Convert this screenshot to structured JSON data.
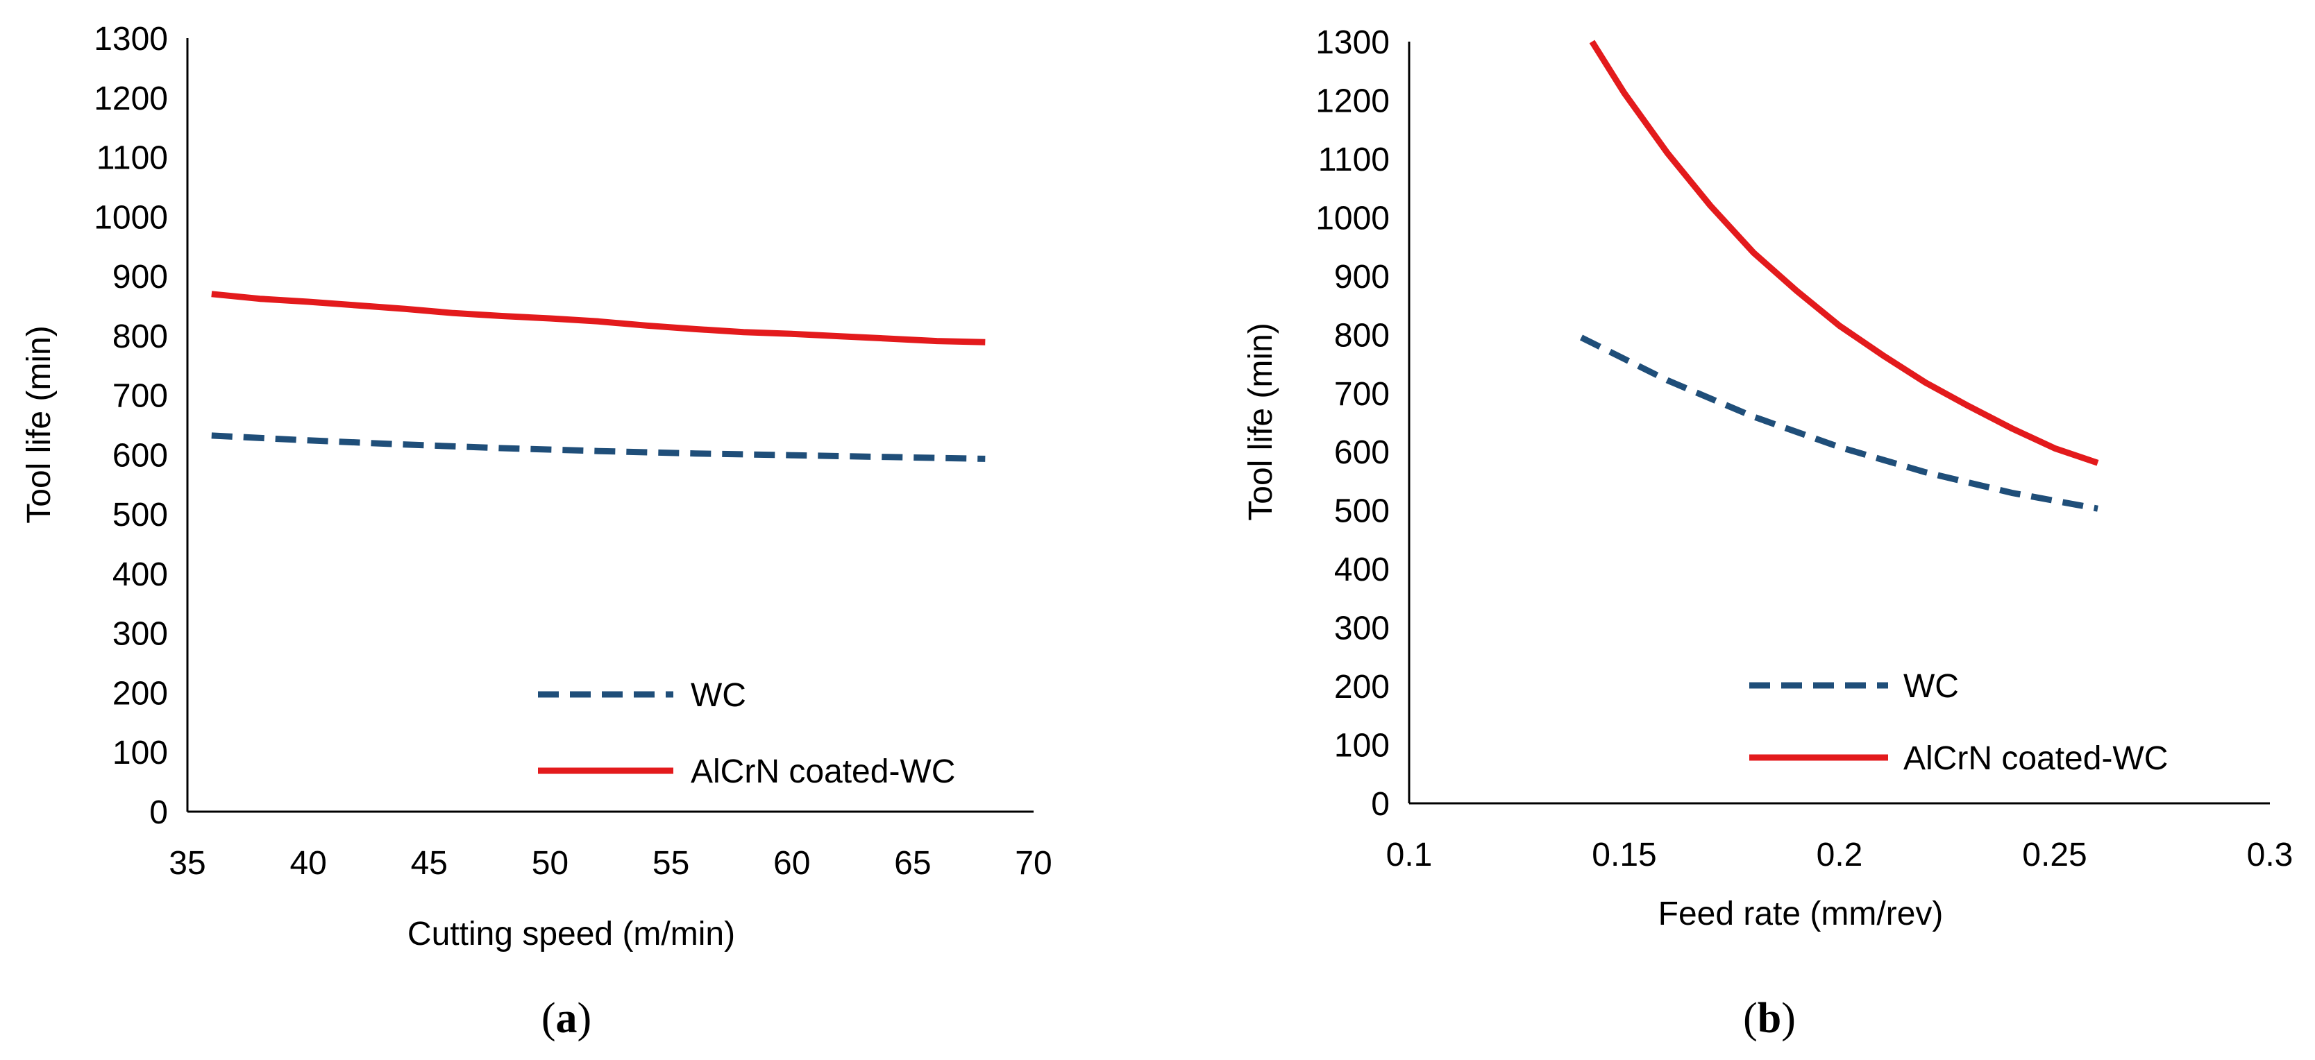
{
  "chart_data": [
    {
      "type": "line",
      "panel_caption": "(a)",
      "caption_open": "(",
      "caption_letter": "a",
      "caption_close": ")",
      "xlabel": "Cutting speed (m/min)",
      "ylabel": "Tool life (min)",
      "xlim": [
        35,
        70
      ],
      "ylim": [
        0,
        1300
      ],
      "xticks": [
        35,
        40,
        45,
        50,
        55,
        60,
        65,
        70
      ],
      "yticks": [
        0,
        100,
        200,
        300,
        400,
        500,
        600,
        700,
        800,
        900,
        1000,
        1100,
        1200,
        1300
      ],
      "legend_position": "bottom-right",
      "series": [
        {
          "name": "WC",
          "style": "dashed",
          "color": "#1f4e79",
          "x": [
            36,
            40,
            44,
            48,
            52,
            56,
            60,
            64,
            68
          ],
          "y": [
            632,
            624,
            617,
            611,
            606,
            602,
            599,
            596,
            593
          ]
        },
        {
          "name": "AlCrN coated-WC",
          "style": "solid",
          "color": "#e31a1c",
          "x": [
            36,
            38,
            40,
            42,
            44,
            46,
            48,
            50,
            52,
            54,
            56,
            58,
            60,
            62,
            64,
            66,
            68
          ],
          "y": [
            870,
            862,
            857,
            851,
            845,
            838,
            833,
            829,
            824,
            817,
            811,
            806,
            803,
            799,
            795,
            791,
            789
          ]
        }
      ]
    },
    {
      "type": "line",
      "panel_caption": "(b)",
      "caption_open": "(",
      "caption_letter": "b",
      "caption_close": ")",
      "xlabel": "Feed rate (mm/rev)",
      "ylabel": "Tool life (min)",
      "xlim": [
        0.1,
        0.3
      ],
      "ylim": [
        0,
        1300
      ],
      "xticks": [
        0.1,
        0.15,
        0.2,
        0.25,
        0.3
      ],
      "yticks": [
        0,
        100,
        200,
        300,
        400,
        500,
        600,
        700,
        800,
        900,
        1000,
        1100,
        1200,
        1300
      ],
      "legend_position": "bottom-right",
      "series": [
        {
          "name": "WC",
          "style": "dashed",
          "color": "#1f4e79",
          "x": [
            0.14,
            0.16,
            0.18,
            0.2,
            0.22,
            0.24,
            0.26
          ],
          "y": [
            795,
            722,
            660,
            608,
            565,
            530,
            503
          ]
        },
        {
          "name": "AlCrN coated-WC",
          "style": "solid",
          "color": "#e31a1c",
          "x": [
            0.1425,
            0.15,
            0.16,
            0.17,
            0.18,
            0.19,
            0.2,
            0.21,
            0.22,
            0.23,
            0.24,
            0.25,
            0.26
          ],
          "y": [
            1300,
            1212,
            1110,
            1020,
            940,
            875,
            815,
            765,
            718,
            678,
            640,
            606,
            581
          ]
        }
      ]
    }
  ]
}
